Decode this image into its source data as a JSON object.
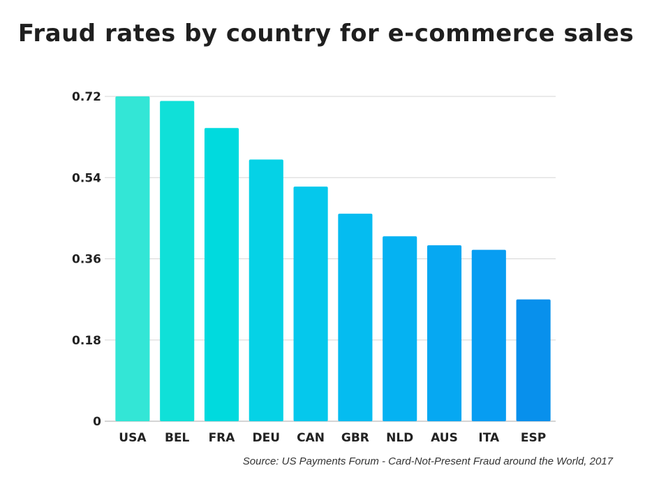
{
  "title": "Fraud rates by country for e-commerce sales",
  "source": "Source: US Payments Forum - Card-Not-Present Fraud around the World, 2017",
  "chart_data": {
    "type": "bar",
    "title": "Fraud rates by country for e-commerce sales",
    "xlabel": "",
    "ylabel": "",
    "categories": [
      "USA",
      "BEL",
      "FRA",
      "DEU",
      "CAN",
      "GBR",
      "NLD",
      "AUS",
      "ITA",
      "ESP"
    ],
    "values": [
      0.72,
      0.71,
      0.65,
      0.58,
      0.52,
      0.46,
      0.41,
      0.39,
      0.38,
      0.27
    ],
    "ylim": [
      0,
      0.72
    ],
    "yticks": [
      "0",
      "0.18",
      "0.36",
      "0.54",
      "0.72"
    ],
    "grid": true,
    "bar_colors": [
      "#33e6d6",
      "#10e0d8",
      "#00dade",
      "#05d2e6",
      "#05c8ec",
      "#05bcf0",
      "#05b2f2",
      "#06a8f2",
      "#079df2",
      "#0890ec"
    ],
    "grid_color": "#d6d6d6",
    "axis_color": "#aaaaaa"
  }
}
